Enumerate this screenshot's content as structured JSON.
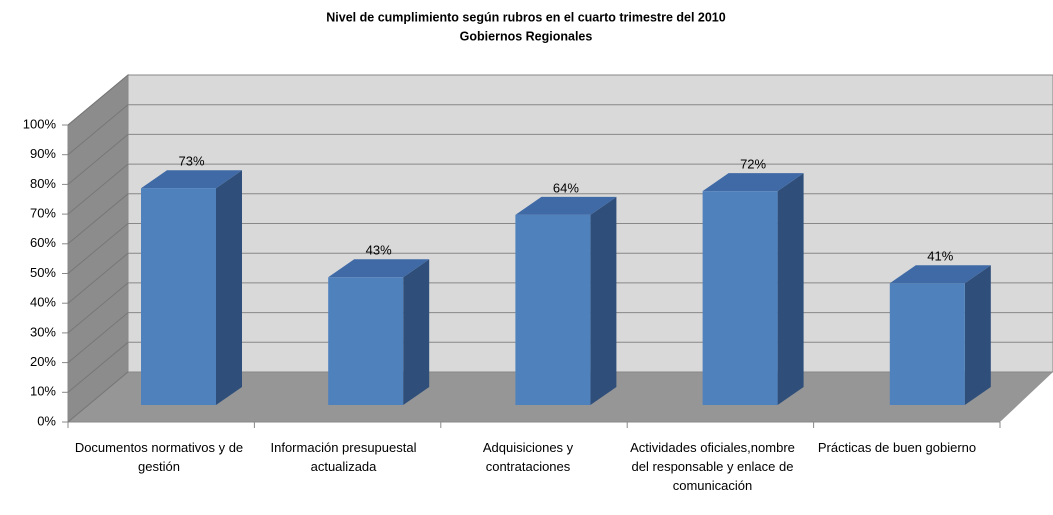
{
  "chart_data": {
    "type": "bar3d",
    "title": "Nivel de cumplimiento según rubros en el cuarto trimestre del 2010",
    "subtitle": "Gobiernos Regionales",
    "categories": [
      "Documentos normativos y de gestión",
      "Información presupuestal actualizada",
      "Adquisiciones y contrataciones",
      "Actividades oficiales,nombre del responsable y enlace de comunicación",
      "Prácticas de buen gobierno"
    ],
    "values": [
      73,
      43,
      64,
      72,
      41
    ],
    "value_labels": [
      "73%",
      "43%",
      "64%",
      "72%",
      "41%"
    ],
    "color": "#4f81bd",
    "ylim": [
      0,
      100
    ],
    "yticks": [
      {
        "value": 0,
        "label": "0%"
      },
      {
        "value": 10,
        "label": "10%"
      },
      {
        "value": 20,
        "label": "20%"
      },
      {
        "value": 30,
        "label": "30%"
      },
      {
        "value": 40,
        "label": "40%"
      },
      {
        "value": 50,
        "label": "50%"
      },
      {
        "value": 60,
        "label": "60%"
      },
      {
        "value": 70,
        "label": "70%"
      },
      {
        "value": 80,
        "label": "80%"
      },
      {
        "value": 90,
        "label": "90%"
      },
      {
        "value": 100,
        "label": "100%"
      }
    ],
    "grid": true
  }
}
